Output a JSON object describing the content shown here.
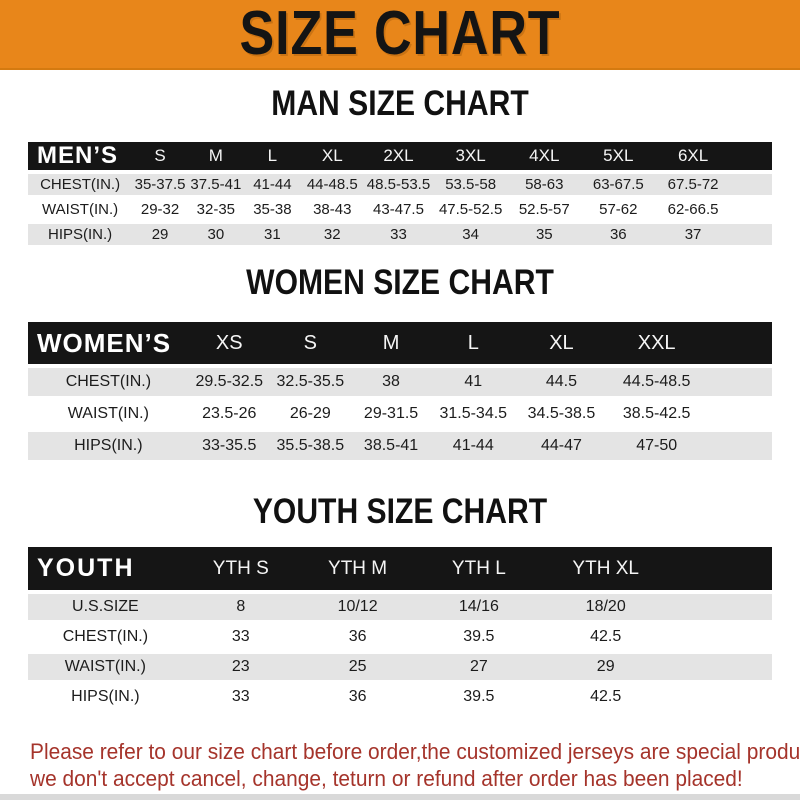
{
  "banner": {
    "title": "SIZE CHART",
    "bg_color": "#e8861a"
  },
  "colors": {
    "table_header_bg": "#151515",
    "row_alt_bg": "#e4e4e4",
    "footer_text": "#a5342b"
  },
  "sections": [
    {
      "heading": "MAN SIZE CHART",
      "table": {
        "label": "MEN’S",
        "columns": [
          "S",
          "M",
          "L",
          "XL",
          "2XL",
          "3XL",
          "4XL",
          "5XL",
          "6XL"
        ],
        "rows": [
          {
            "label": "CHEST(IN.)",
            "values": [
              "35-37.5",
              "37.5-41",
              "41-44",
              "44-48.5",
              "48.5-53.5",
              "53.5-58",
              "58-63",
              "63-67.5",
              "67.5-72"
            ]
          },
          {
            "label": "WAIST(IN.)",
            "values": [
              "29-32",
              "32-35",
              "35-38",
              "38-43",
              "43-47.5",
              "47.5-52.5",
              "52.5-57",
              "57-62",
              "62-66.5"
            ]
          },
          {
            "label": "HIPS(IN.)",
            "values": [
              "29",
              "30",
              "31",
              "32",
              "33",
              "34",
              "35",
              "36",
              "37"
            ]
          }
        ]
      }
    },
    {
      "heading": "WOMEN SIZE CHART",
      "table": {
        "label": "WOMEN’S",
        "columns": [
          "XS",
          "S",
          "M",
          "L",
          "XL",
          "XXL"
        ],
        "rows": [
          {
            "label": "CHEST(IN.)",
            "values": [
              "29.5-32.5",
              "32.5-35.5",
              "38",
              "41",
              "44.5",
              "44.5-48.5"
            ]
          },
          {
            "label": "WAIST(IN.)",
            "values": [
              "23.5-26",
              "26-29",
              "29-31.5",
              "31.5-34.5",
              "34.5-38.5",
              "38.5-42.5"
            ]
          },
          {
            "label": "HIPS(IN.)",
            "values": [
              "33-35.5",
              "35.5-38.5",
              "38.5-41",
              "41-44",
              "44-47",
              "47-50"
            ]
          }
        ]
      }
    },
    {
      "heading": "YOUTH SIZE CHART",
      "table": {
        "label": "YOUTH",
        "columns": [
          "YTH S",
          "YTH M",
          "YTH L",
          "YTH XL"
        ],
        "rows": [
          {
            "label": "U.S.SIZE",
            "values": [
              "8",
              "10/12",
              "14/16",
              "18/20"
            ]
          },
          {
            "label": "CHEST(IN.)",
            "values": [
              "33",
              "36",
              "39.5",
              "42.5"
            ]
          },
          {
            "label": "WAIST(IN.)",
            "values": [
              "23",
              "25",
              "27",
              "29"
            ]
          },
          {
            "label": "HIPS(IN.)",
            "values": [
              "33",
              "36",
              "39.5",
              "42.5"
            ]
          }
        ]
      }
    }
  ],
  "footer": {
    "line1": "Please refer to our size chart before order,the customized jerseys are special products,",
    "line2": "we don't accept cancel, change, teturn or refund after order has been placed!"
  }
}
